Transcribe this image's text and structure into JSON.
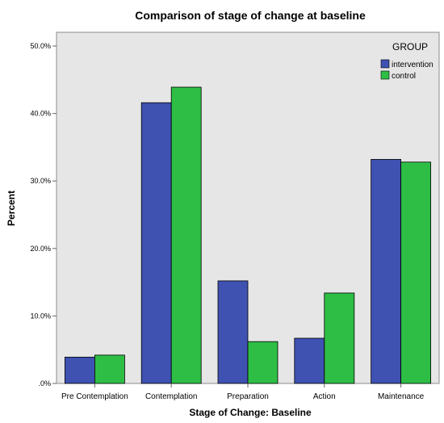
{
  "chart_data": {
    "type": "bar",
    "title": "Comparison of stage of change at baseline",
    "xlabel": "Stage of Change: Baseline",
    "ylabel": "Percent",
    "categories": [
      "Pre Contemplation",
      "Contemplation",
      "Preparation",
      "Action",
      "Maintenance"
    ],
    "series": [
      {
        "name": "intervention",
        "color": "#3F51B1",
        "values": [
          3.9,
          41.6,
          15.2,
          6.7,
          33.2
        ]
      },
      {
        "name": "control",
        "color": "#2EBE45",
        "values": [
          4.2,
          43.9,
          6.2,
          13.4,
          32.8
        ]
      }
    ],
    "ylim": [
      0,
      50
    ],
    "yticks": [
      0,
      10,
      20,
      30,
      40,
      50
    ],
    "ytick_labels": [
      ".0%",
      "10.0%",
      "20.0%",
      "30.0%",
      "40.0%",
      "50.0%"
    ],
    "legend": {
      "title": "GROUP",
      "placement": "top-right"
    },
    "plot_background": "#E6E6E6",
    "grid": false
  }
}
